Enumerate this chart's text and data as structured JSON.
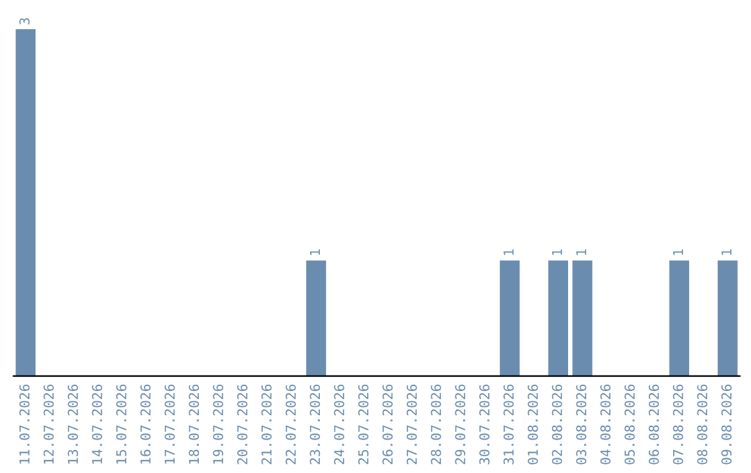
{
  "chart_data": {
    "type": "bar",
    "categories": [
      "11.07.2026",
      "12.07.2026",
      "13.07.2026",
      "14.07.2026",
      "15.07.2026",
      "16.07.2026",
      "17.07.2026",
      "18.07.2026",
      "19.07.2026",
      "20.07.2026",
      "21.07.2026",
      "22.07.2026",
      "23.07.2026",
      "24.07.2026",
      "25.07.2026",
      "26.07.2026",
      "27.07.2026",
      "28.07.2026",
      "29.07.2026",
      "30.07.2026",
      "31.07.2026",
      "01.08.2026",
      "02.08.2026",
      "03.08.2026",
      "04.08.2026",
      "05.08.2026",
      "06.08.2026",
      "07.08.2026",
      "08.08.2026",
      "09.08.2026"
    ],
    "values": [
      3,
      0,
      0,
      0,
      0,
      0,
      0,
      0,
      0,
      0,
      0,
      0,
      1,
      0,
      0,
      0,
      0,
      0,
      0,
      0,
      1,
      0,
      1,
      1,
      0,
      0,
      0,
      1,
      0,
      1
    ],
    "value_labels": [
      "3",
      null,
      null,
      null,
      null,
      null,
      null,
      null,
      null,
      null,
      null,
      null,
      "1",
      null,
      null,
      null,
      null,
      null,
      null,
      null,
      "1",
      null,
      "1",
      "1",
      null,
      null,
      null,
      "1",
      null,
      "1"
    ],
    "color": "#6a8caf",
    "grid": false,
    "legend": false
  }
}
